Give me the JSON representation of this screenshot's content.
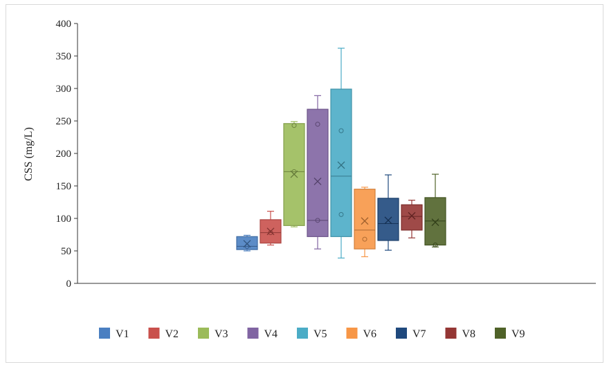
{
  "chart_data": {
    "type": "box",
    "title": "",
    "xlabel": "",
    "ylabel": "CSS (mg/L)",
    "ylim": [
      0,
      400
    ],
    "yticks": [
      0,
      50,
      100,
      150,
      200,
      250,
      300,
      350,
      400
    ],
    "grid": false,
    "legend_position": "bottom",
    "series": [
      {
        "name": "V1",
        "color": "#4a7fc1",
        "min": 50,
        "q1": 52,
        "median": 57,
        "q3": 72,
        "max": 74,
        "mean": 61,
        "points": [
          57
        ]
      },
      {
        "name": "V2",
        "color": "#c9504c",
        "min": 59,
        "q1": 62,
        "median": 78,
        "q3": 98,
        "max": 111,
        "mean": 80,
        "points": [
          78
        ]
      },
      {
        "name": "V3",
        "color": "#9bbb59",
        "min": 87,
        "q1": 89,
        "median": 172,
        "q3": 246,
        "max": 249,
        "mean": 168,
        "points": [
          172,
          243
        ]
      },
      {
        "name": "V4",
        "color": "#8064a2",
        "min": 53,
        "q1": 72,
        "median": 97,
        "q3": 268,
        "max": 289,
        "mean": 157,
        "points": [
          245,
          97
        ]
      },
      {
        "name": "V5",
        "color": "#4bacc6",
        "min": 39,
        "q1": 72,
        "median": 165,
        "q3": 299,
        "max": 362,
        "mean": 182,
        "points": [
          235,
          106
        ]
      },
      {
        "name": "V6",
        "color": "#f79646",
        "min": 41,
        "q1": 53,
        "median": 82,
        "q3": 145,
        "max": 148,
        "mean": 96,
        "points": [
          68
        ]
      },
      {
        "name": "V7",
        "color": "#1f497d",
        "min": 51,
        "q1": 66,
        "median": 92,
        "q3": 131,
        "max": 167,
        "mean": 97,
        "points": []
      },
      {
        "name": "V8",
        "color": "#943634",
        "min": 70,
        "q1": 82,
        "median": 103,
        "q3": 121,
        "max": 128,
        "mean": 104,
        "points": []
      },
      {
        "name": "V9",
        "color": "#4f6228",
        "min": 56,
        "q1": 59,
        "median": 96,
        "q3": 132,
        "max": 168,
        "mean": 94,
        "points": [
          59
        ]
      }
    ]
  }
}
